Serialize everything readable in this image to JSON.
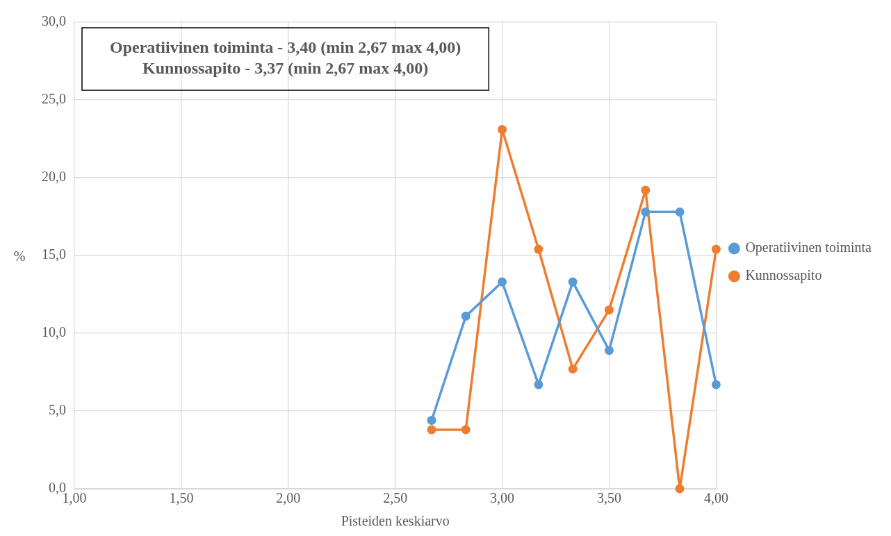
{
  "chart_data": {
    "type": "line",
    "xlabel": "Pisteiden keskiarvo",
    "ylabel": "%",
    "annotations": [
      "Operatiivinen toiminta - 3,40 (min 2,67 max 4,00)",
      "Kunnossapito - 3,37 (min 2,67 max 4,00)"
    ],
    "x": [
      2.67,
      2.83,
      3.0,
      3.17,
      3.33,
      3.5,
      3.67,
      3.83,
      4.0
    ],
    "series": [
      {
        "name": "Operatiivinen toiminta",
        "color": "#5b9bd5",
        "values": [
          4.4,
          11.1,
          13.3,
          6.7,
          13.3,
          8.9,
          17.8,
          17.8,
          6.7
        ]
      },
      {
        "name": "Kunnossapito",
        "color": "#ed7d31",
        "values": [
          3.8,
          3.8,
          23.1,
          15.4,
          7.7,
          11.5,
          19.2,
          0,
          15.4
        ]
      }
    ],
    "xlim": [
      1,
      4
    ],
    "xticks": [
      {
        "value": 1,
        "label": "1,00"
      },
      {
        "value": 1.5,
        "label": "1,50"
      },
      {
        "value": 2,
        "label": "2,00"
      },
      {
        "value": 2.5,
        "label": "2,50"
      },
      {
        "value": 3,
        "label": "3,00"
      },
      {
        "value": 3.5,
        "label": "3,50"
      },
      {
        "value": 4,
        "label": "4,00"
      }
    ],
    "ylim": [
      0,
      30
    ],
    "yticks": [
      {
        "value": 0,
        "label": "0,0"
      },
      {
        "value": 5,
        "label": "5,0"
      },
      {
        "value": 10,
        "label": "10,0"
      },
      {
        "value": 15,
        "label": "15,0"
      },
      {
        "value": 20,
        "label": "20,0"
      },
      {
        "value": 25,
        "label": "25,0"
      },
      {
        "value": 30,
        "label": "30,0"
      }
    ],
    "grid": true,
    "legend": "right",
    "marker": "circle",
    "line_style": "solid"
  }
}
